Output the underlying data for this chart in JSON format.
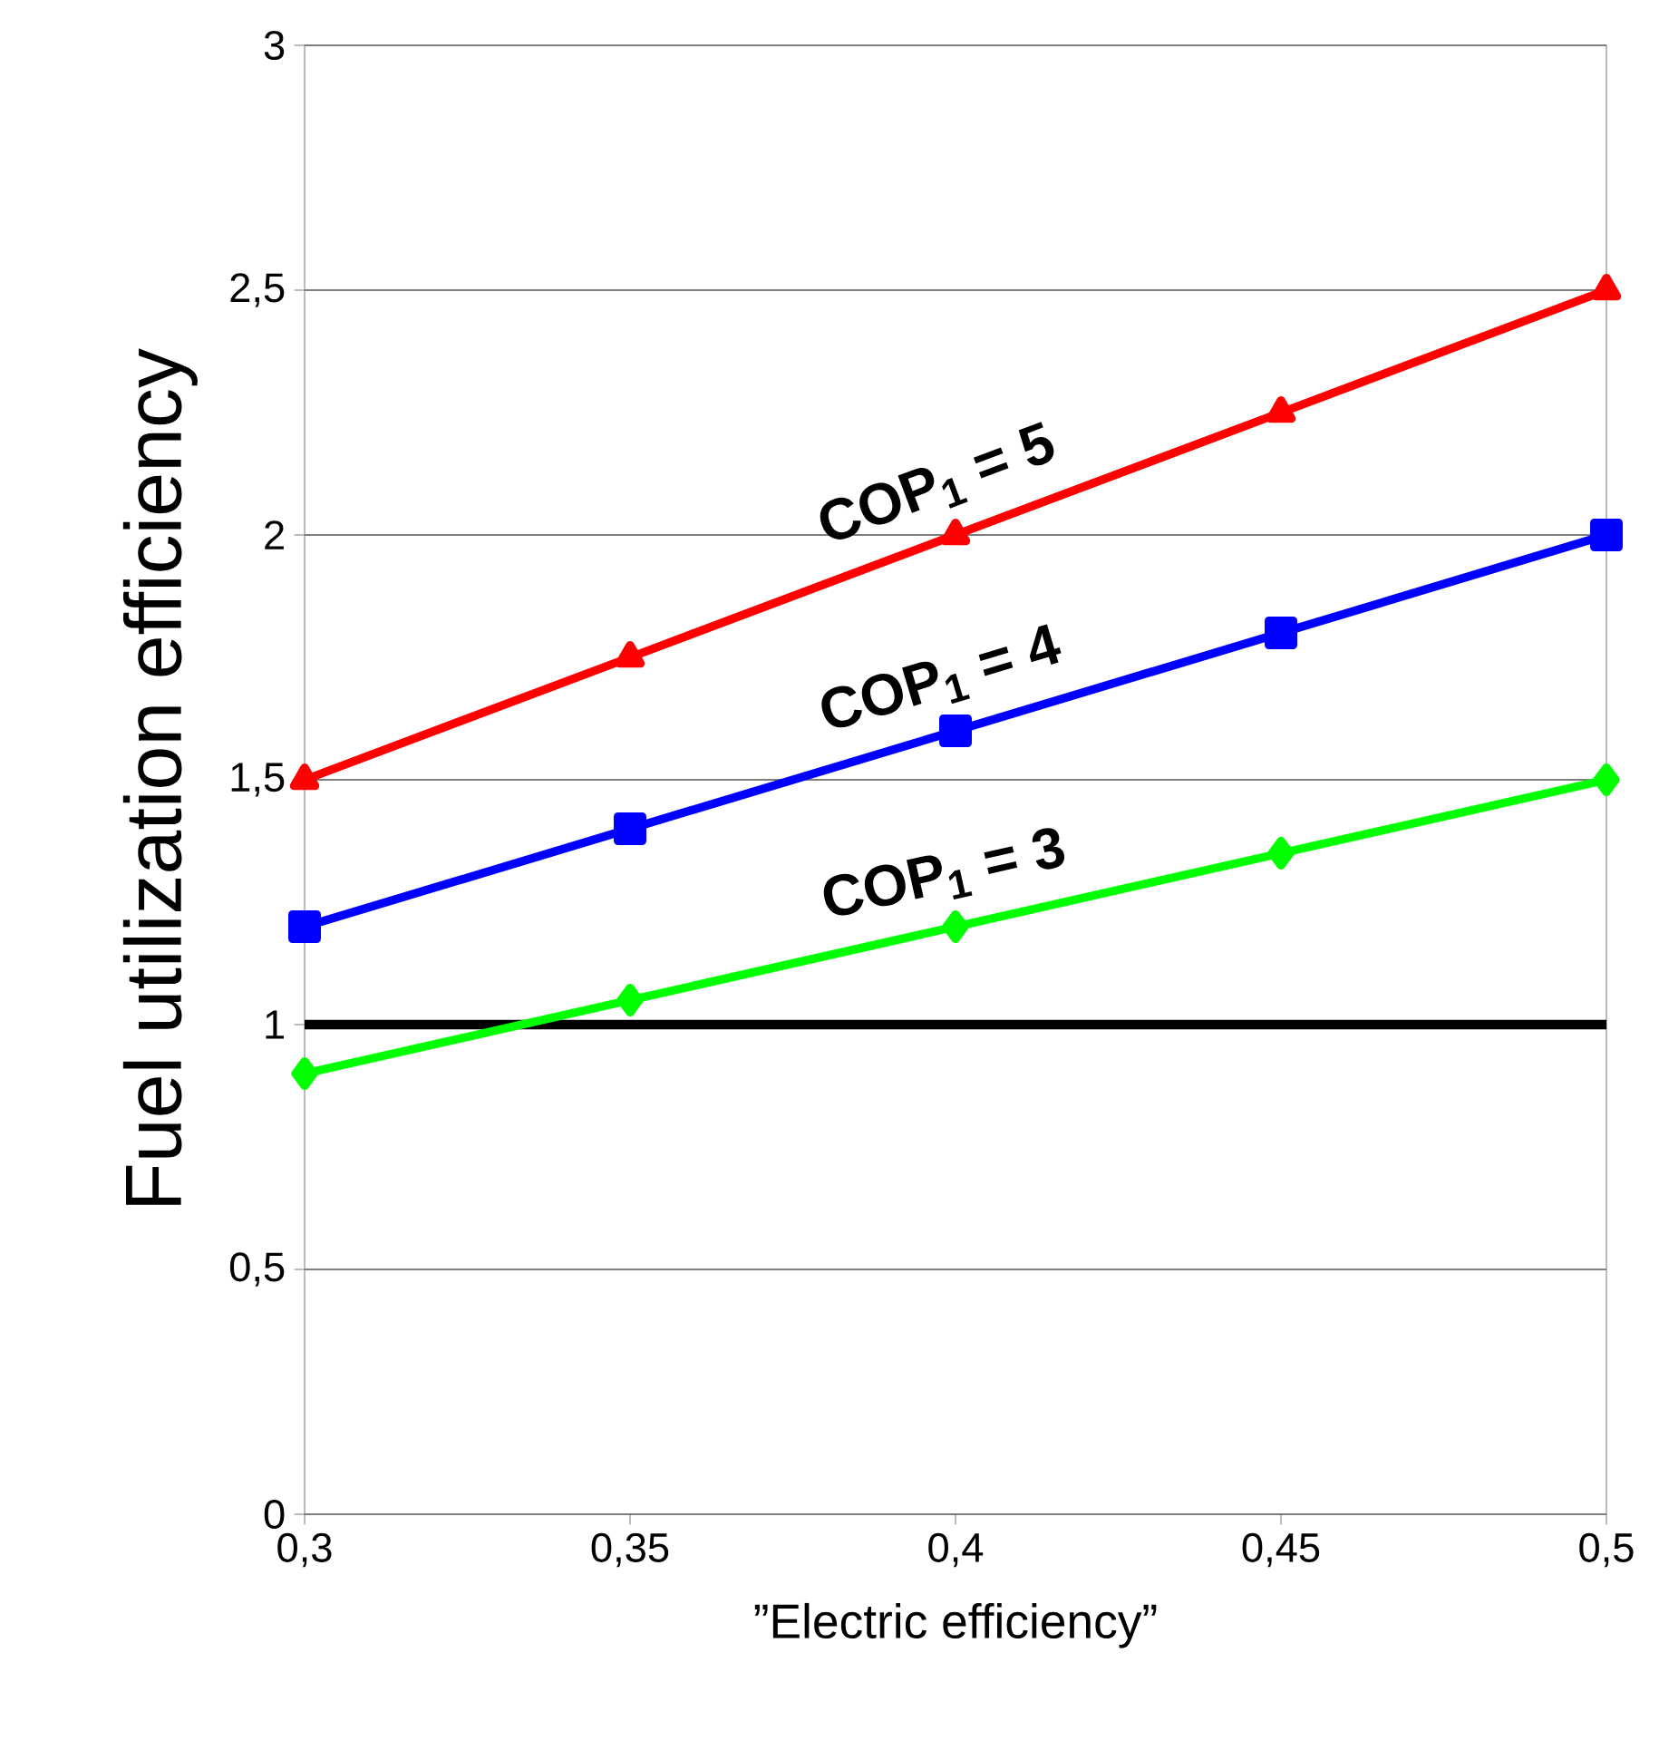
{
  "chart_data": {
    "type": "line",
    "xlabel": "”Electric efficiency”",
    "ylabel": "Fuel utilization efficiency",
    "x": [
      0.3,
      0.35,
      0.4,
      0.45,
      0.5
    ],
    "series": [
      {
        "name": "COP$_{1}$ = 5",
        "color": "#ff0000",
        "values": [
          1.5,
          1.75,
          2.0,
          2.25,
          2.5
        ],
        "marker": "triangle"
      },
      {
        "name": "COP$_{1}$ = 4",
        "color": "#0000ff",
        "values": [
          1.2,
          1.4,
          1.6,
          1.8,
          2.0
        ],
        "marker": "square"
      },
      {
        "name": "COP$_{1}$ = 3",
        "color": "#00ff00",
        "values": [
          0.9,
          1.05,
          1.2,
          1.35,
          1.5
        ],
        "marker": "diamond"
      }
    ],
    "xlim": [
      0.3,
      0.5
    ],
    "xticks": [
      {
        "value": 0.3,
        "label": "0,3"
      },
      {
        "value": 0.35,
        "label": "0,35"
      },
      {
        "value": 0.4,
        "label": "0,4"
      },
      {
        "value": 0.45,
        "label": "0,45"
      },
      {
        "value": 0.5,
        "label": "0,5"
      }
    ],
    "ylim": [
      0,
      3
    ],
    "yticks": [
      0,
      {
        "value": 0.5,
        "label": "0,5"
      },
      1,
      {
        "value": 1.5,
        "label": "1,5"
      },
      2,
      {
        "value": 2.5,
        "label": "2,5"
      },
      3
    ],
    "ref_lines": [
      {
        "axis": "y",
        "value": 1,
        "color": "#000000"
      }
    ],
    "grid": "y"
  }
}
